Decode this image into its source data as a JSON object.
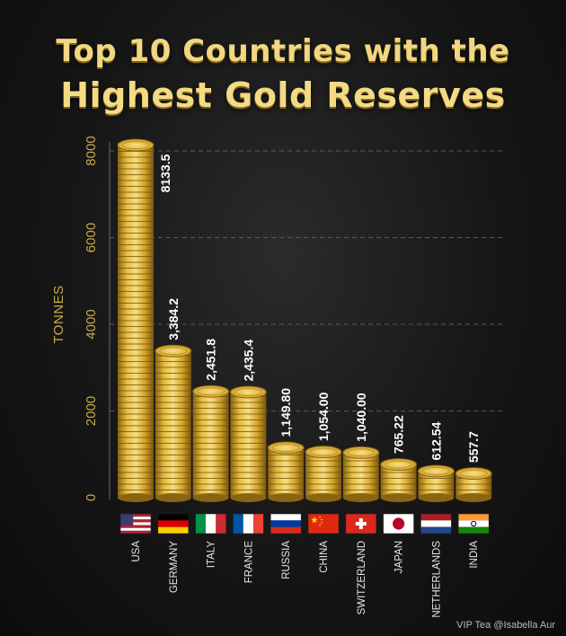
{
  "title": {
    "line1": "Top 10 Countries with the",
    "line2": "Highest Gold Reserves"
  },
  "watermark": "VIP Tea @Isabella Aur",
  "colors": {
    "gold_light": "#f4d97a",
    "gold_mid": "#d8ac2c",
    "gold_dark": "#8a6412",
    "axis_text": "#c9a94a",
    "data_label": "#ffffff"
  },
  "chart_data": {
    "type": "bar",
    "title": "Top 10 Countries with the Highest Gold Reserves",
    "xlabel": "",
    "ylabel": "TONNES",
    "ylim": [
      0,
      8000
    ],
    "yticks": [
      0,
      2000,
      4000,
      6000,
      8000
    ],
    "grid": true,
    "categories": [
      "USA",
      "GERMANY",
      "ITALY",
      "FRANCE",
      "RUSSIA",
      "CHINA",
      "SWITZERLAND",
      "JAPAN",
      "NETHERLANDS",
      "INDIA"
    ],
    "values": [
      8133.5,
      3384.2,
      2451.8,
      2435.4,
      1149.8,
      1054.0,
      1040.0,
      765.22,
      612.54,
      557.7
    ],
    "value_labels": [
      "8133.5",
      "3,384.2",
      "2,451.8",
      "2,435.4",
      "1,149.80",
      "1,054.00",
      "1,040.00",
      "765.22",
      "612.54",
      "557.7"
    ],
    "flags": [
      "us-flag-icon",
      "germany-flag-icon",
      "italy-flag-icon",
      "france-flag-icon",
      "russia-flag-icon",
      "china-flag-icon",
      "switzerland-flag-icon",
      "japan-flag-icon",
      "netherlands-flag-icon",
      "india-flag-icon"
    ]
  }
}
